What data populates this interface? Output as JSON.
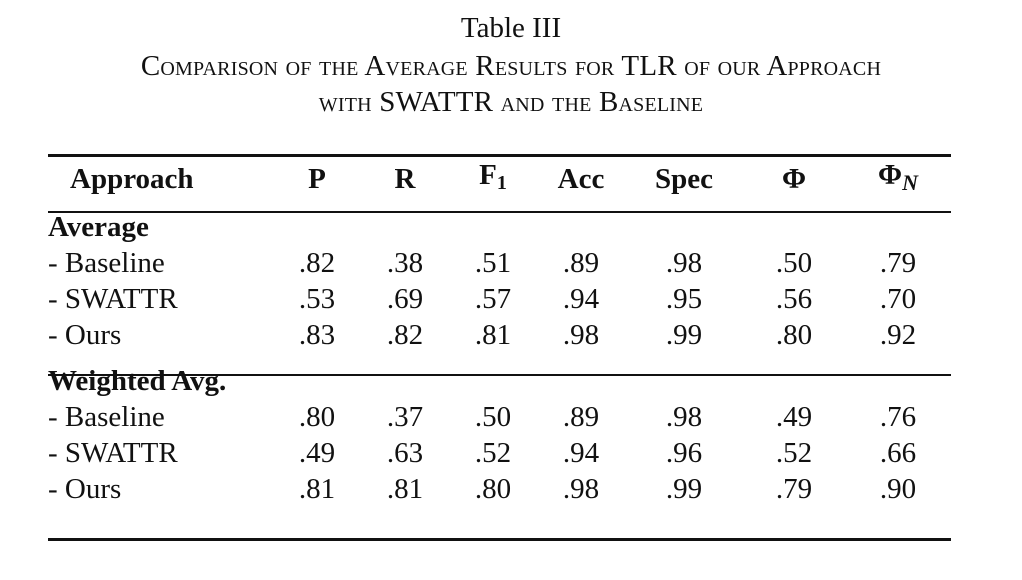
{
  "caption": {
    "label": "Table III",
    "line1": "Comparison of the Average Results for TLR of our Approach",
    "line2": "with SWATTR and the Baseline"
  },
  "table": {
    "headers": {
      "approach": "Approach",
      "p": "P",
      "r": "R",
      "f1_main": "F",
      "f1_sub": "1",
      "acc": "Acc",
      "spec": "Spec",
      "phi": "Φ",
      "phin_main": "Φ",
      "phin_sub": "N"
    },
    "groups": [
      {
        "title": "Average",
        "rows": [
          {
            "label": "- Baseline",
            "values": [
              ".82",
              ".38",
              ".51",
              ".89",
              ".98",
              ".50",
              ".79"
            ]
          },
          {
            "label": "- SWATTR",
            "values": [
              ".53",
              ".69",
              ".57",
              ".94",
              ".95",
              ".56",
              ".70"
            ]
          },
          {
            "label": "- Ours",
            "values": [
              ".83",
              ".82",
              ".81",
              ".98",
              ".99",
              ".80",
              ".92"
            ]
          }
        ]
      },
      {
        "title": "Weighted Avg.",
        "rows": [
          {
            "label": "- Baseline",
            "values": [
              ".80",
              ".37",
              ".50",
              ".89",
              ".98",
              ".49",
              ".76"
            ]
          },
          {
            "label": "- SWATTR",
            "values": [
              ".49",
              ".63",
              ".52",
              ".94",
              ".96",
              ".52",
              ".66"
            ]
          },
          {
            "label": "- Ours",
            "values": [
              ".81",
              ".81",
              ".80",
              ".98",
              ".99",
              ".79",
              ".90"
            ]
          }
        ]
      }
    ]
  }
}
